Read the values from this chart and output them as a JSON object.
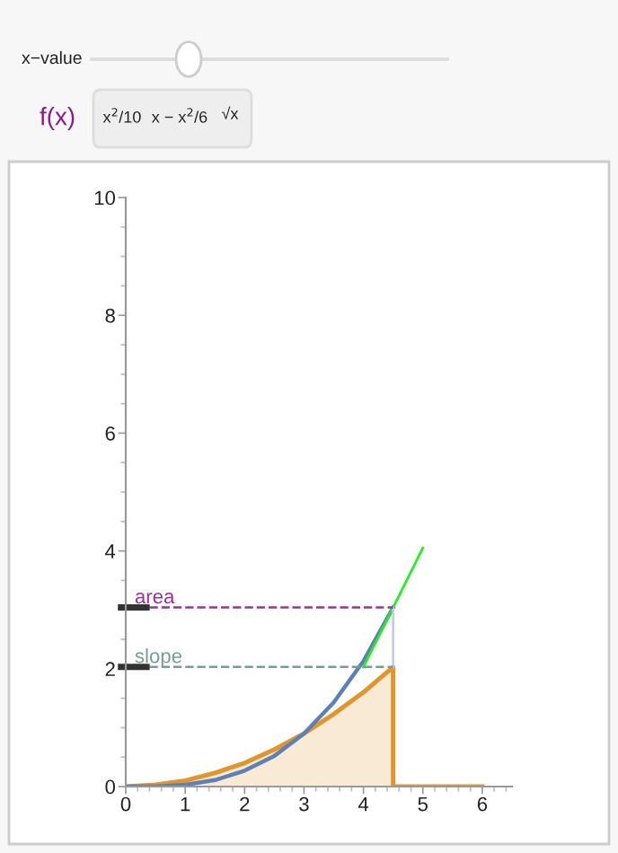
{
  "chart_data": {
    "type": "line",
    "annotations": [
      "x−value",
      "f(x)",
      "x$^{2}$/10",
      "x − x$^{2}$/6",
      "√x"
    ],
    "xlim": [
      0,
      6.5
    ],
    "ylim": [
      0,
      10
    ],
    "xticks": [
      0,
      1,
      2,
      3,
      4,
      5,
      6
    ],
    "yticks": [
      0,
      2,
      4,
      6,
      8,
      10
    ],
    "series": [
      {
        "type": "area",
        "color": "#e0952d",
        "x": [
          0,
          0.5,
          1,
          1.5,
          2,
          2.5,
          3,
          3.5,
          4,
          4.5,
          4.5,
          6
        ],
        "values": [
          0,
          0.03,
          0.1,
          0.23,
          0.4,
          0.63,
          0.9,
          1.23,
          1.6,
          2.03,
          0,
          0
        ]
      },
      {
        "color": "#5e81b5",
        "x": [
          0,
          0.5,
          1,
          1.5,
          2,
          2.5,
          3,
          3.5,
          4,
          4.5
        ],
        "values": [
          0,
          0,
          0.03,
          0.11,
          0.27,
          0.52,
          0.9,
          1.43,
          2.13,
          3.04
        ]
      },
      {
        "color": "#22ee22",
        "x": [
          4,
          5
        ],
        "values": [
          2.03,
          4.05
        ]
      },
      {
        "color": "#c8c8e8",
        "x": [
          4.5,
          4.5
        ],
        "values": [
          2.03,
          3.04
        ]
      }
    ],
    "ref_lines": [
      {
        "axis": "y",
        "value": 3.04,
        "label": "area",
        "color": "#993399",
        "line_style": "dashed"
      },
      {
        "axis": "y",
        "value": 2.03,
        "label": "slope",
        "color": "#7a9a95",
        "line_style": "dashed"
      }
    ]
  }
}
